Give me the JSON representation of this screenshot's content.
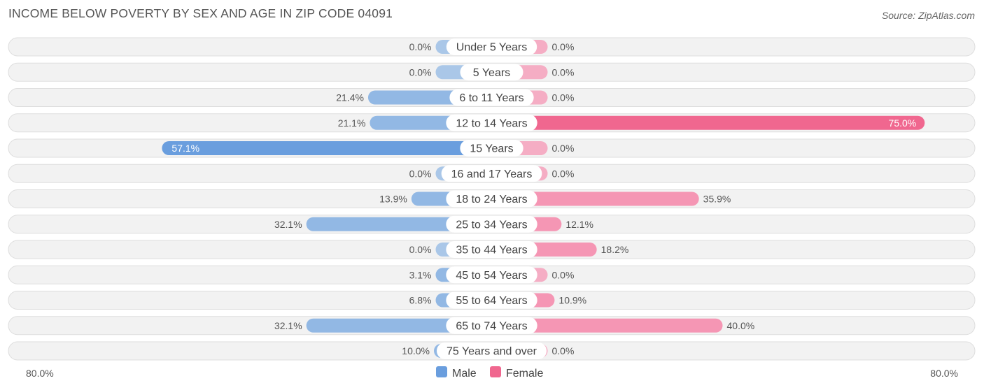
{
  "title": "INCOME BELOW POVERTY BY SEX AND AGE IN ZIP CODE 04091",
  "source": "Source: ZipAtlas.com",
  "chart_data": {
    "type": "bar",
    "orientation": "horizontal-diverging",
    "title": "INCOME BELOW POVERTY BY SEX AND AGE IN ZIP CODE 04091",
    "categories": [
      "Under 5 Years",
      "5 Years",
      "6 to 11 Years",
      "12 to 14 Years",
      "15 Years",
      "16 and 17 Years",
      "18 to 24 Years",
      "25 to 34 Years",
      "35 to 44 Years",
      "45 to 54 Years",
      "55 to 64 Years",
      "65 to 74 Years",
      "75 Years and over"
    ],
    "series": [
      {
        "name": "Male",
        "values": [
          0.0,
          0.0,
          21.4,
          21.1,
          57.1,
          0.0,
          13.9,
          32.1,
          0.0,
          3.1,
          6.8,
          32.1,
          10.0
        ],
        "color": "#92b8e4",
        "highlight_color": "#6a9ede"
      },
      {
        "name": "Female",
        "values": [
          0.0,
          0.0,
          0.0,
          75.0,
          0.0,
          0.0,
          35.9,
          12.1,
          18.2,
          0.0,
          10.9,
          40.0,
          0.0
        ],
        "color": "#f596b4",
        "highlight_color": "#f0678f"
      }
    ],
    "xlim": [
      -80,
      80
    ],
    "axis_labels": {
      "left": "80.0%",
      "right": "80.0%"
    },
    "legend": [
      "Male",
      "Female"
    ],
    "legend_position": "bottom-center",
    "value_suffix": "%"
  }
}
